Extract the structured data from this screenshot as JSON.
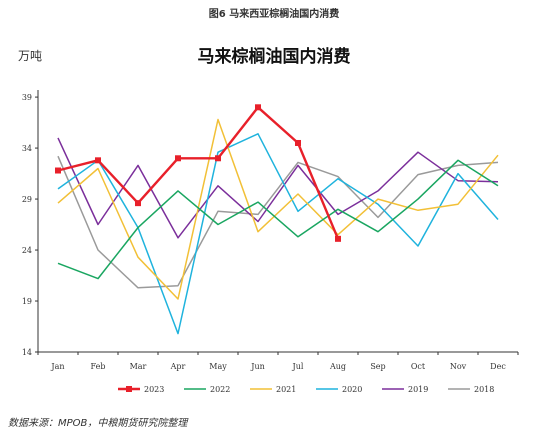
{
  "figure": {
    "caption": "图6 马来西亚棕榈油国内消费",
    "source": "数据来源：MPOB，中粮期货研究院整理"
  },
  "chart_data": {
    "type": "line",
    "title": "马来棕榈油国内消费",
    "unit_label": "万吨",
    "categories": [
      "Jan",
      "Feb",
      "Mar",
      "Apr",
      "May",
      "Jun",
      "Jul",
      "Aug",
      "Sep",
      "Oct",
      "Nov",
      "Dec"
    ],
    "y_ticks": [
      14,
      19,
      24,
      29,
      34,
      39
    ],
    "ylim": [
      14,
      39.5
    ],
    "grid": false,
    "legend_position": "bottom",
    "series": [
      {
        "name": "2023",
        "color": "#e8202a",
        "marker": "square",
        "values": [
          31.8,
          32.8,
          28.6,
          33.0,
          33.0,
          38.0,
          34.5,
          25.1,
          null,
          null,
          null,
          null
        ]
      },
      {
        "name": "2022",
        "color": "#1aa661",
        "marker": "none",
        "values": [
          22.7,
          21.2,
          26.2,
          29.8,
          26.5,
          28.7,
          25.3,
          28.0,
          25.8,
          29.0,
          32.8,
          30.3
        ]
      },
      {
        "name": "2021",
        "color": "#f2c037",
        "marker": "none",
        "values": [
          28.6,
          32.0,
          23.3,
          19.2,
          36.8,
          25.8,
          29.5,
          25.5,
          29.0,
          27.9,
          28.5,
          33.3
        ]
      },
      {
        "name": "2020",
        "color": "#1fb3dd",
        "marker": "none",
        "values": [
          30.0,
          32.8,
          26.2,
          15.8,
          33.6,
          35.4,
          27.8,
          31.0,
          28.5,
          24.4,
          31.5,
          27.0
        ]
      },
      {
        "name": "2019",
        "color": "#7b2f9b",
        "marker": "none",
        "values": [
          35.0,
          26.5,
          32.3,
          25.2,
          30.3,
          26.8,
          32.3,
          27.5,
          29.8,
          33.6,
          30.8,
          30.7
        ]
      },
      {
        "name": "2018",
        "color": "#9a9a9a",
        "marker": "none",
        "values": [
          33.2,
          24.0,
          20.3,
          20.5,
          27.8,
          27.5,
          32.6,
          31.2,
          27.2,
          31.4,
          32.3,
          32.6
        ]
      }
    ]
  }
}
